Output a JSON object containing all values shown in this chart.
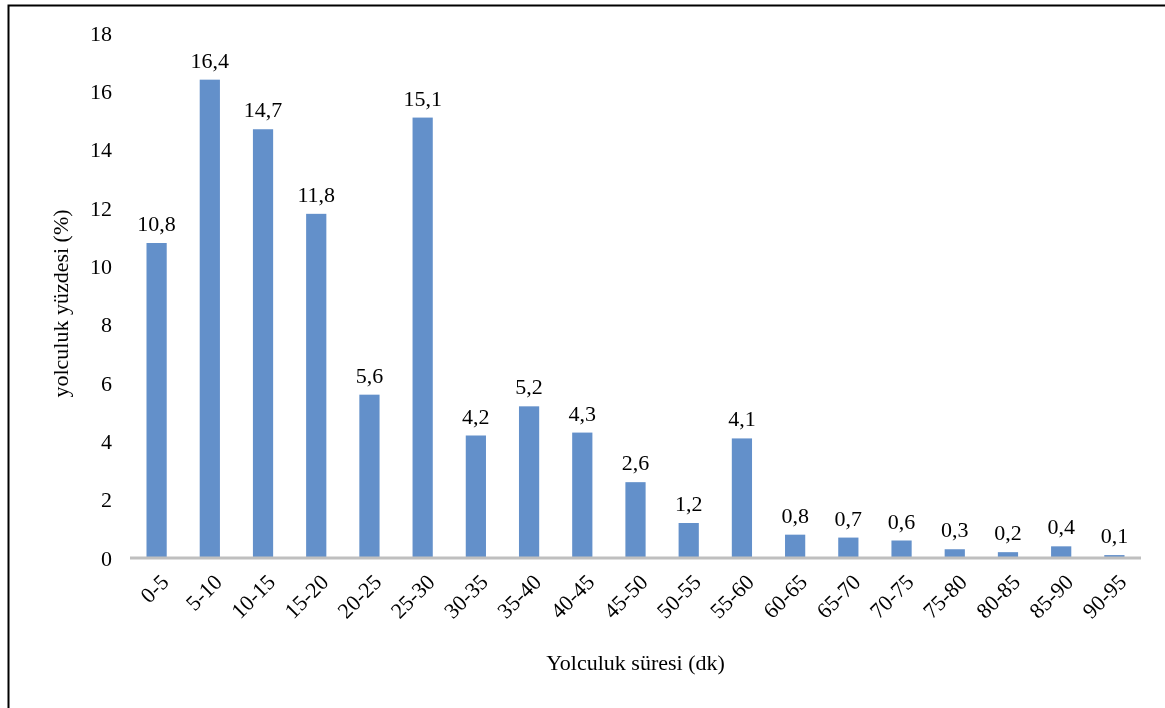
{
  "chart_data": {
    "type": "bar",
    "xlabel": "Yolculuk süresi (dk)",
    "ylabel": "yolculuk yüzdesi (%)",
    "categories": [
      "0-5",
      "5-10",
      "10-15",
      "15-20",
      "20-25",
      "25-30",
      "30-35",
      "35-40",
      "40-45",
      "45-50",
      "50-55",
      "55-60",
      "60-65",
      "65-70",
      "70-75",
      "75-80",
      "80-85",
      "85-90",
      "90-95"
    ],
    "values": [
      10.8,
      16.4,
      14.7,
      11.8,
      5.6,
      15.1,
      4.2,
      5.2,
      4.3,
      2.6,
      1.2,
      4.1,
      0.8,
      0.7,
      0.6,
      0.3,
      0.2,
      0.4,
      0.1
    ],
    "value_labels": [
      "10,8",
      "16,4",
      "14,7",
      "11,8",
      "5,6",
      "15,1",
      "4,2",
      "5,2",
      "4,3",
      "2,6",
      "1,2",
      "4,1",
      "0,8",
      "0,7",
      "0,6",
      "0,3",
      "0,2",
      "0,4",
      "0,1"
    ],
    "color": "#6390ca",
    "ylim": [
      0,
      18
    ],
    "yticks": [
      0,
      2,
      4,
      6,
      8,
      10,
      12,
      14,
      16,
      18
    ],
    "grid": false
  }
}
